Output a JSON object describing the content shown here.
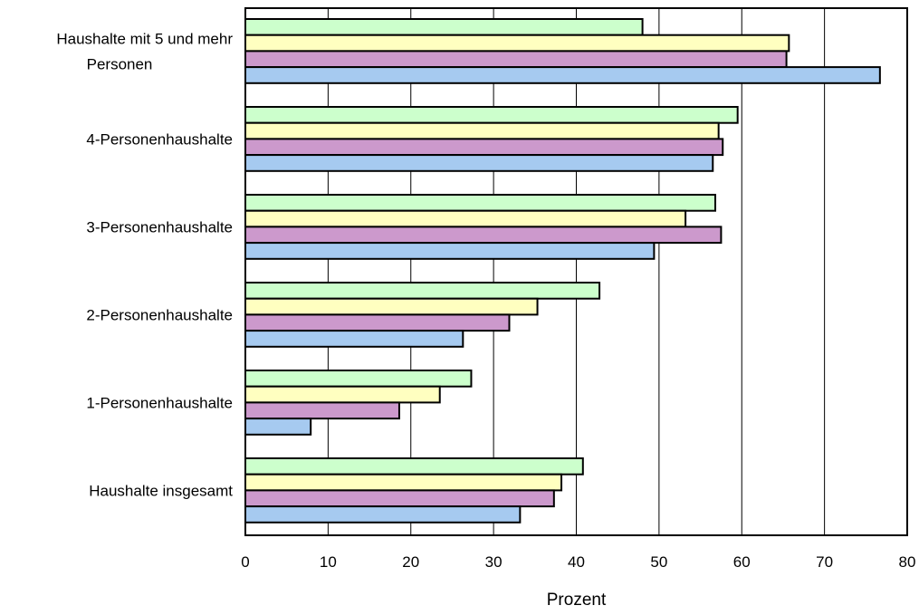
{
  "chart_data": {
    "type": "bar",
    "orientation": "horizontal",
    "categories": [
      [
        "Haushalte mit 5 und mehr",
        "Personen"
      ],
      [
        "4-Personenhaushalte"
      ],
      [
        "3-Personenhaushalte"
      ],
      [
        "2-Personenhaushalte"
      ],
      [
        "1-Personenhaushalte"
      ],
      [
        "Haushalte insgesamt"
      ]
    ],
    "series": [
      {
        "color": "#ccffcc",
        "values": [
          48.0,
          59.5,
          56.8,
          42.8,
          27.3,
          40.8
        ]
      },
      {
        "color": "#ffffc0",
        "values": [
          65.7,
          57.2,
          53.2,
          35.3,
          23.5,
          38.2
        ]
      },
      {
        "color": "#cc99cc",
        "values": [
          65.4,
          57.7,
          57.5,
          31.9,
          18.6,
          37.3
        ]
      },
      {
        "color": "#a6caf0",
        "values": [
          76.7,
          56.5,
          49.4,
          26.3,
          7.9,
          33.2
        ]
      }
    ],
    "xlim": [
      0,
      80
    ],
    "xticks": [
      0,
      10,
      20,
      30,
      40,
      50,
      60,
      70,
      80
    ],
    "xlabel": "Prozent",
    "ylabel": "",
    "title": "",
    "grid": "vertical",
    "legend": "none"
  }
}
